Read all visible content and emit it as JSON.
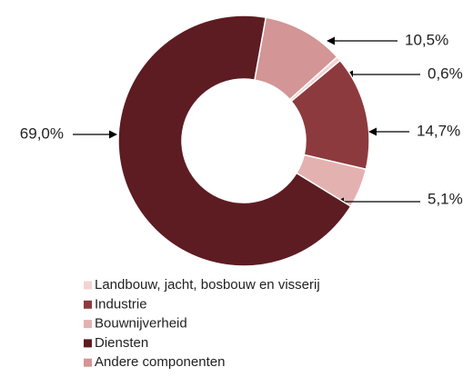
{
  "chart_data": {
    "type": "donut",
    "categories": [
      "Landbouw, jacht, bosbouw en visserij",
      "Industrie",
      "Bouwnijverheid",
      "Diensten",
      "Andere componenten"
    ],
    "values": [
      0.6,
      14.7,
      5.1,
      69.0,
      10.5
    ],
    "value_labels": [
      "0,6%",
      "14,7%",
      "5,1%",
      "69,0%",
      "10,5%"
    ],
    "colors": [
      "#f3d3d3",
      "#8d3a3e",
      "#e4b1b1",
      "#5d1c22",
      "#d39595"
    ],
    "legend": "bottom"
  }
}
